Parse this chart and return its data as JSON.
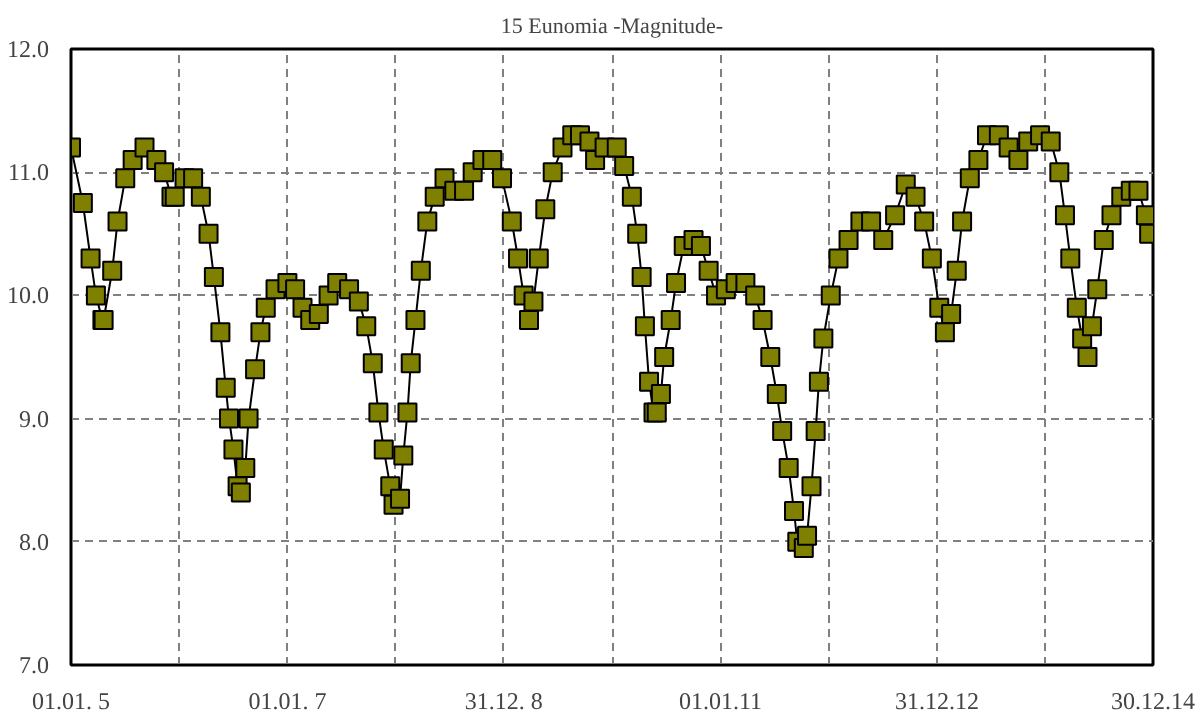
{
  "chart_data": {
    "type": "line",
    "title": "15 Eunomia -Magnitude-",
    "marker": "square",
    "line_style": "solid",
    "grid": true,
    "xlim": [
      "2005-01-01",
      "2014-12-30"
    ],
    "ylim": [
      7,
      12
    ],
    "xticks": [
      {
        "value": "2005-01-01",
        "label": "01.01. 5"
      },
      {
        "value": "2006-01-01",
        "label": null
      },
      {
        "value": "2007-01-01",
        "label": "01.01. 7"
      },
      {
        "value": "2008-01-01",
        "label": null
      },
      {
        "value": "2008-12-31",
        "label": "31.12. 8"
      },
      {
        "value": "2010-01-01",
        "label": null
      },
      {
        "value": "2011-01-01",
        "label": "01.01.11"
      },
      {
        "value": "2012-01-01",
        "label": null
      },
      {
        "value": "2012-12-31",
        "label": "31.12.12"
      },
      {
        "value": "2014-01-01",
        "label": null
      },
      {
        "value": "2014-12-30",
        "label": "30.12.14"
      }
    ],
    "yticks": [
      {
        "value": 7,
        "label": "7.0"
      },
      {
        "value": 8,
        "label": "8.0"
      },
      {
        "value": 9,
        "label": "9.0"
      },
      {
        "value": 10,
        "label": "10.0"
      },
      {
        "value": 11,
        "label": "11.0"
      },
      {
        "value": 12,
        "label": "12.0"
      }
    ],
    "series": [
      {
        "color": "#808000",
        "x": [
          "2005-01-01",
          "2005-02-10",
          "2005-03-08",
          "2005-03-26",
          "2005-04-17",
          "2005-04-21",
          "2005-05-20",
          "2005-06-07",
          "2005-07-03",
          "2005-07-28",
          "2005-09-06",
          "2005-10-16",
          "2005-11-11",
          "2005-12-06",
          "2005-12-17",
          "2006-01-19",
          "2006-02-17",
          "2006-03-15",
          "2006-04-10",
          "2006-04-28",
          "2006-05-20",
          "2006-06-07",
          "2006-06-18",
          "2006-07-03",
          "2006-07-17",
          "2006-07-28",
          "2006-08-12",
          "2006-08-23",
          "2006-09-14",
          "2006-10-02",
          "2006-10-20",
          "2006-11-22",
          "2007-01-01",
          "2007-01-27",
          "2007-02-21",
          "2007-03-19",
          "2007-04-17",
          "2007-05-20",
          "2007-06-18",
          "2007-07-28",
          "2007-08-30",
          "2007-09-24",
          "2007-10-16",
          "2007-11-04",
          "2007-11-22",
          "2007-12-14",
          "2007-12-25",
          "2008-01-16",
          "2008-01-27",
          "2008-02-10",
          "2008-02-21",
          "2008-03-08",
          "2008-03-26",
          "2008-04-17",
          "2008-05-12",
          "2008-06-14",
          "2008-07-17",
          "2008-08-19",
          "2008-09-17",
          "2008-10-20",
          "2008-11-22",
          "2008-12-25",
          "2009-01-27",
          "2009-02-17",
          "2009-03-08",
          "2009-03-26",
          "2009-04-10",
          "2009-04-28",
          "2009-05-20",
          "2009-06-14",
          "2009-07-17",
          "2009-08-19",
          "2009-09-14",
          "2009-10-16",
          "2009-11-04",
          "2009-12-06",
          "2010-01-16",
          "2010-02-10",
          "2010-03-08",
          "2010-03-26",
          "2010-04-10",
          "2010-04-21",
          "2010-05-05",
          "2010-05-20",
          "2010-05-31",
          "2010-06-14",
          "2010-06-25",
          "2010-07-17",
          "2010-08-04",
          "2010-08-30",
          "2010-10-02",
          "2010-10-27",
          "2010-11-22",
          "2010-12-17",
          "2011-01-19",
          "2011-02-21",
          "2011-03-26",
          "2011-04-28",
          "2011-05-23",
          "2011-06-18",
          "2011-07-10",
          "2011-07-28",
          "2011-08-19",
          "2011-09-06",
          "2011-09-17",
          "2011-10-09",
          "2011-10-20",
          "2011-11-04",
          "2011-11-18",
          "2011-11-29",
          "2011-12-14",
          "2012-01-08",
          "2012-02-03",
          "2012-03-08",
          "2012-04-17",
          "2012-05-23",
          "2012-07-03",
          "2012-08-12",
          "2012-09-17",
          "2012-10-20",
          "2012-11-18",
          "2012-12-14",
          "2013-01-08",
          "2013-01-27",
          "2013-02-17",
          "2013-03-08",
          "2013-03-26",
          "2013-04-21",
          "2013-05-20",
          "2013-06-18",
          "2013-07-28",
          "2013-08-30",
          "2013-10-02",
          "2013-11-04",
          "2013-12-14",
          "2014-01-19",
          "2014-02-17",
          "2014-03-08",
          "2014-03-26",
          "2014-04-17",
          "2014-05-05",
          "2014-05-23",
          "2014-06-07",
          "2014-06-25",
          "2014-07-17",
          "2014-08-12",
          "2014-09-14",
          "2014-10-16",
          "2014-11-11",
          "2014-12-06",
          "2014-12-17"
        ],
        "values": [
          11.2,
          10.75,
          10.3,
          10.0,
          9.8,
          9.8,
          10.2,
          10.6,
          10.95,
          11.1,
          11.2,
          11.1,
          11.0,
          10.8,
          10.8,
          10.95,
          10.95,
          10.8,
          10.5,
          10.15,
          9.7,
          9.25,
          9.0,
          8.75,
          8.45,
          8.4,
          8.6,
          9.0,
          9.4,
          9.7,
          9.9,
          10.05,
          10.1,
          10.05,
          9.9,
          9.8,
          9.85,
          10.0,
          10.1,
          10.05,
          9.95,
          9.75,
          9.45,
          9.05,
          8.75,
          8.45,
          8.3,
          8.35,
          8.7,
          9.05,
          9.45,
          9.8,
          10.2,
          10.6,
          10.8,
          10.95,
          10.85,
          10.85,
          11.0,
          11.1,
          11.1,
          10.95,
          10.6,
          10.3,
          10.0,
          9.8,
          9.95,
          10.3,
          10.7,
          11.0,
          11.2,
          11.3,
          11.3,
          11.25,
          11.1,
          11.2,
          11.2,
          11.05,
          10.8,
          10.5,
          10.15,
          9.75,
          9.3,
          9.05,
          9.05,
          9.2,
          9.5,
          9.8,
          10.1,
          10.4,
          10.45,
          10.4,
          10.2,
          10.0,
          10.05,
          10.1,
          10.1,
          10.0,
          9.8,
          9.5,
          9.2,
          8.9,
          8.6,
          8.25,
          8.0,
          7.95,
          8.05,
          8.45,
          8.9,
          9.3,
          9.65,
          10.0,
          10.3,
          10.45,
          10.6,
          10.6,
          10.45,
          10.65,
          10.9,
          10.8,
          10.6,
          10.3,
          9.9,
          9.7,
          9.85,
          10.2,
          10.6,
          10.95,
          11.1,
          11.3,
          11.3,
          11.2,
          11.1,
          11.25,
          11.3,
          11.25,
          11.0,
          10.65,
          10.3,
          9.9,
          9.65,
          9.5,
          9.75,
          10.05,
          10.45,
          10.65,
          10.8,
          10.85,
          10.85,
          10.65,
          10.5
        ]
      }
    ]
  }
}
